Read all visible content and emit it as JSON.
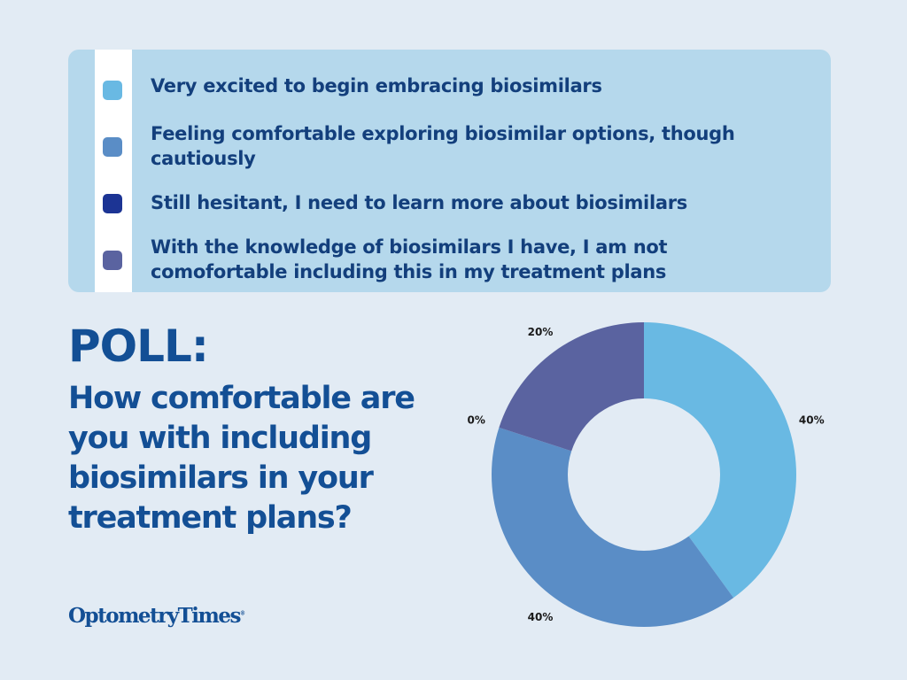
{
  "legend": {
    "items": [
      {
        "label": "Very excited to begin embracing biosimilars",
        "color": "#69b9e3"
      },
      {
        "label": "Feeling comfortable exploring biosimilar options, though cautiously",
        "color": "#5a8dc6"
      },
      {
        "label": "Still hesitant, I need to learn more about biosimilars",
        "color": "#1c3494"
      },
      {
        "label": "With the knowledge of biosimilars I have, I am not comofortable including this in my treatment plans",
        "color": "#5a63a0"
      }
    ]
  },
  "poll": {
    "title": "POLL:",
    "question": "How comfortable are you with including biosimilars in your treatment plans?"
  },
  "brand": {
    "name": "OptometryTimes",
    "mark": "®"
  },
  "chart_data": {
    "type": "pie",
    "style": "donut",
    "title": "",
    "categories": [
      "Very excited to begin embracing biosimilars",
      "Feeling comfortable exploring biosimilar options, though cautiously",
      "Still hesitant, I need to learn more about biosimilars",
      "With the knowledge of biosimilars I have, I am not comofortable including this in my treatment plans"
    ],
    "values": [
      40,
      40,
      0,
      20
    ],
    "labels": [
      "40%",
      "40%",
      "0%",
      "20%"
    ],
    "colors": [
      "#69b9e3",
      "#5a8dc6",
      "#1c3494",
      "#5a63a0"
    ]
  }
}
